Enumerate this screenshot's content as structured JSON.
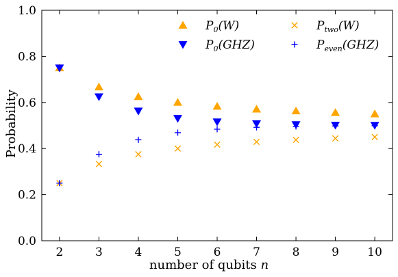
{
  "chart_data": {
    "type": "scatter",
    "x": [
      2,
      3,
      4,
      5,
      6,
      7,
      8,
      9,
      10
    ],
    "xlabel": "number of qubits",
    "xlabel_var": "n",
    "ylabel": "Probability",
    "xlim": [
      1.55,
      10.45
    ],
    "ylim": [
      0.0,
      1.0
    ],
    "xticks": [
      "2",
      "3",
      "4",
      "5",
      "6",
      "7",
      "8",
      "9",
      "10"
    ],
    "yticks": [
      "0.0",
      "0.2",
      "0.4",
      "0.6",
      "0.8",
      "1.0"
    ],
    "grid": false,
    "legend_position": "top-right",
    "series": [
      {
        "name": "P_0(W)",
        "label_main": "P",
        "label_sub": "0",
        "label_arg": "(W)",
        "marker": "triangle-up",
        "color": "#FFA500",
        "values": [
          0.75,
          0.667,
          0.625,
          0.6,
          0.583,
          0.571,
          0.563,
          0.556,
          0.55
        ]
      },
      {
        "name": "P_0(GHZ)",
        "label_main": "P",
        "label_sub": "0",
        "label_arg": "(GHZ)",
        "marker": "triangle-down",
        "color": "#0000FF",
        "values": [
          0.75,
          0.625,
          0.563,
          0.531,
          0.516,
          0.508,
          0.504,
          0.502,
          0.501
        ]
      },
      {
        "name": "P_two(W)",
        "label_main": "P",
        "label_sub": "two",
        "label_arg": "(W)",
        "marker": "x",
        "color": "#FFA500",
        "values": [
          0.25,
          0.333,
          0.375,
          0.4,
          0.417,
          0.429,
          0.438,
          0.444,
          0.45
        ]
      },
      {
        "name": "P_even(GHZ)",
        "label_main": "P",
        "label_sub": "even",
        "label_arg": "(GHZ)",
        "marker": "plus",
        "color": "#0000FF",
        "values": [
          0.25,
          0.375,
          0.438,
          0.469,
          0.484,
          0.492,
          0.496,
          0.498,
          0.499
        ]
      }
    ]
  }
}
